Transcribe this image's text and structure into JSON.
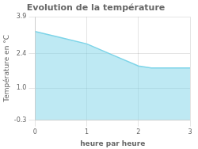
{
  "chart_data": {
    "type": "area",
    "title": "Evolution de la température",
    "xlabel": "heure par heure",
    "ylabel": "Température en °C",
    "x": [
      0,
      0.5,
      1.0,
      1.5,
      2.0,
      2.25,
      2.5,
      3.0
    ],
    "values": [
      3.3,
      3.05,
      2.8,
      2.35,
      1.9,
      1.82,
      1.82,
      1.82
    ],
    "color": "#7dd4e8",
    "xlim": [
      0,
      3
    ],
    "ylim": [
      -0.3,
      3.9
    ],
    "xticks": [
      0,
      1,
      2,
      3
    ],
    "yticks": [
      -0.3,
      {
        "value": 1.0,
        "label": "1.0"
      },
      2.4,
      3.9
    ],
    "grid": true
  }
}
